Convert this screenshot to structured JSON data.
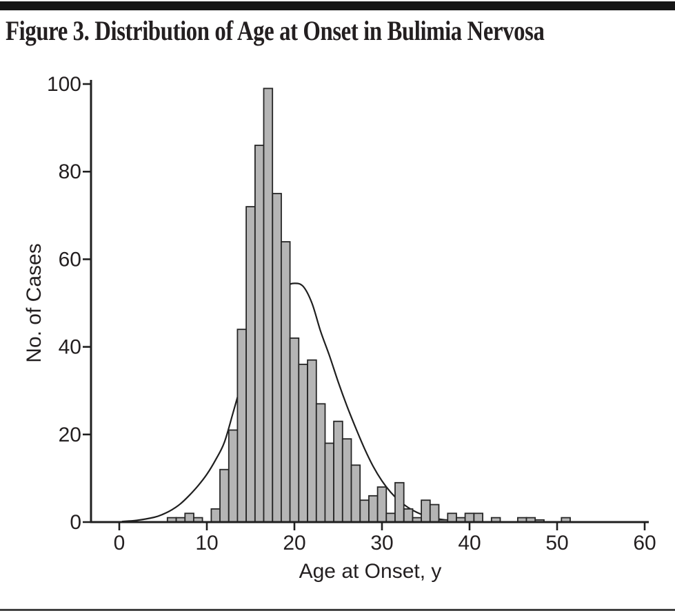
{
  "figure": {
    "top_rule": "black horizontal band",
    "bottom_rule": "thin horizontal rule"
  },
  "chart_data": {
    "type": "bar",
    "subtype": "histogram-with-fit-curve",
    "title": "Figure 3. Distribution of Age at Onset in Bulimia Nervosa",
    "xlabel": "Age at Onset, y",
    "ylabel": "No. of Cases",
    "xlim": [
      -3,
      60
    ],
    "ylim": [
      0,
      100
    ],
    "x_ticks": [
      0,
      10,
      20,
      30,
      40,
      50,
      60
    ],
    "y_ticks": [
      0,
      20,
      40,
      60,
      80,
      100
    ],
    "grid": false,
    "legend": "none",
    "bin_width_years": 1,
    "bars": {
      "ages": [
        6,
        7,
        8,
        9,
        11,
        12,
        13,
        14,
        15,
        16,
        17,
        18,
        19,
        20,
        21,
        22,
        23,
        24,
        25,
        26,
        27,
        28,
        29,
        30,
        31,
        32,
        33,
        34,
        35,
        36,
        37,
        38,
        39,
        40,
        41,
        43,
        46,
        47,
        48,
        51
      ],
      "counts": [
        1,
        1,
        2,
        1,
        3,
        12,
        21,
        44,
        72,
        86,
        99,
        75,
        64,
        42,
        36,
        37,
        27,
        18,
        23,
        19,
        13,
        5,
        6,
        8,
        2,
        9,
        3,
        1,
        5,
        4,
        0.5,
        2,
        1,
        2,
        2,
        1,
        1,
        1,
        0.5,
        1
      ]
    },
    "fit_curve": {
      "description": "smooth right-skewed fitted distribution curve, peak ~54.5 cases near age 20",
      "points": [
        [
          0.3,
          0.15
        ],
        [
          2,
          0.4
        ],
        [
          4,
          1.1
        ],
        [
          5,
          1.8
        ],
        [
          6,
          2.8
        ],
        [
          7,
          4.2
        ],
        [
          8,
          6.1
        ],
        [
          9,
          8.3
        ],
        [
          10,
          10.9
        ],
        [
          11,
          14.2
        ],
        [
          12,
          18.2
        ],
        [
          13,
          25
        ],
        [
          14,
          32
        ],
        [
          15,
          38.5
        ],
        [
          16,
          44
        ],
        [
          17,
          48.5
        ],
        [
          18,
          51.7
        ],
        [
          19,
          53.8
        ],
        [
          20,
          54.5
        ],
        [
          21,
          53.8
        ],
        [
          22,
          50
        ],
        [
          23,
          43.5
        ],
        [
          24,
          38
        ],
        [
          25,
          32
        ],
        [
          26,
          26.5
        ],
        [
          27,
          21.5
        ],
        [
          28,
          16.8
        ],
        [
          29,
          12.7
        ],
        [
          30,
          9.4
        ],
        [
          31,
          6.8
        ],
        [
          32,
          4.8
        ],
        [
          33,
          3.3
        ],
        [
          34,
          2.2
        ],
        [
          35,
          1.4
        ],
        [
          36,
          0.9
        ],
        [
          37,
          0.55
        ],
        [
          38,
          0.35
        ],
        [
          39,
          0.2
        ],
        [
          40.5,
          0.1
        ]
      ]
    },
    "colors": {
      "bar_fill": "#b5b5b5",
      "bar_stroke": "#262626",
      "curve": "#1f1f1f",
      "axis": "#1f1f1f",
      "text": "#231f20",
      "top_rule": "#161616",
      "bottom_rule": "#404040",
      "background": "#ffffff"
    }
  }
}
